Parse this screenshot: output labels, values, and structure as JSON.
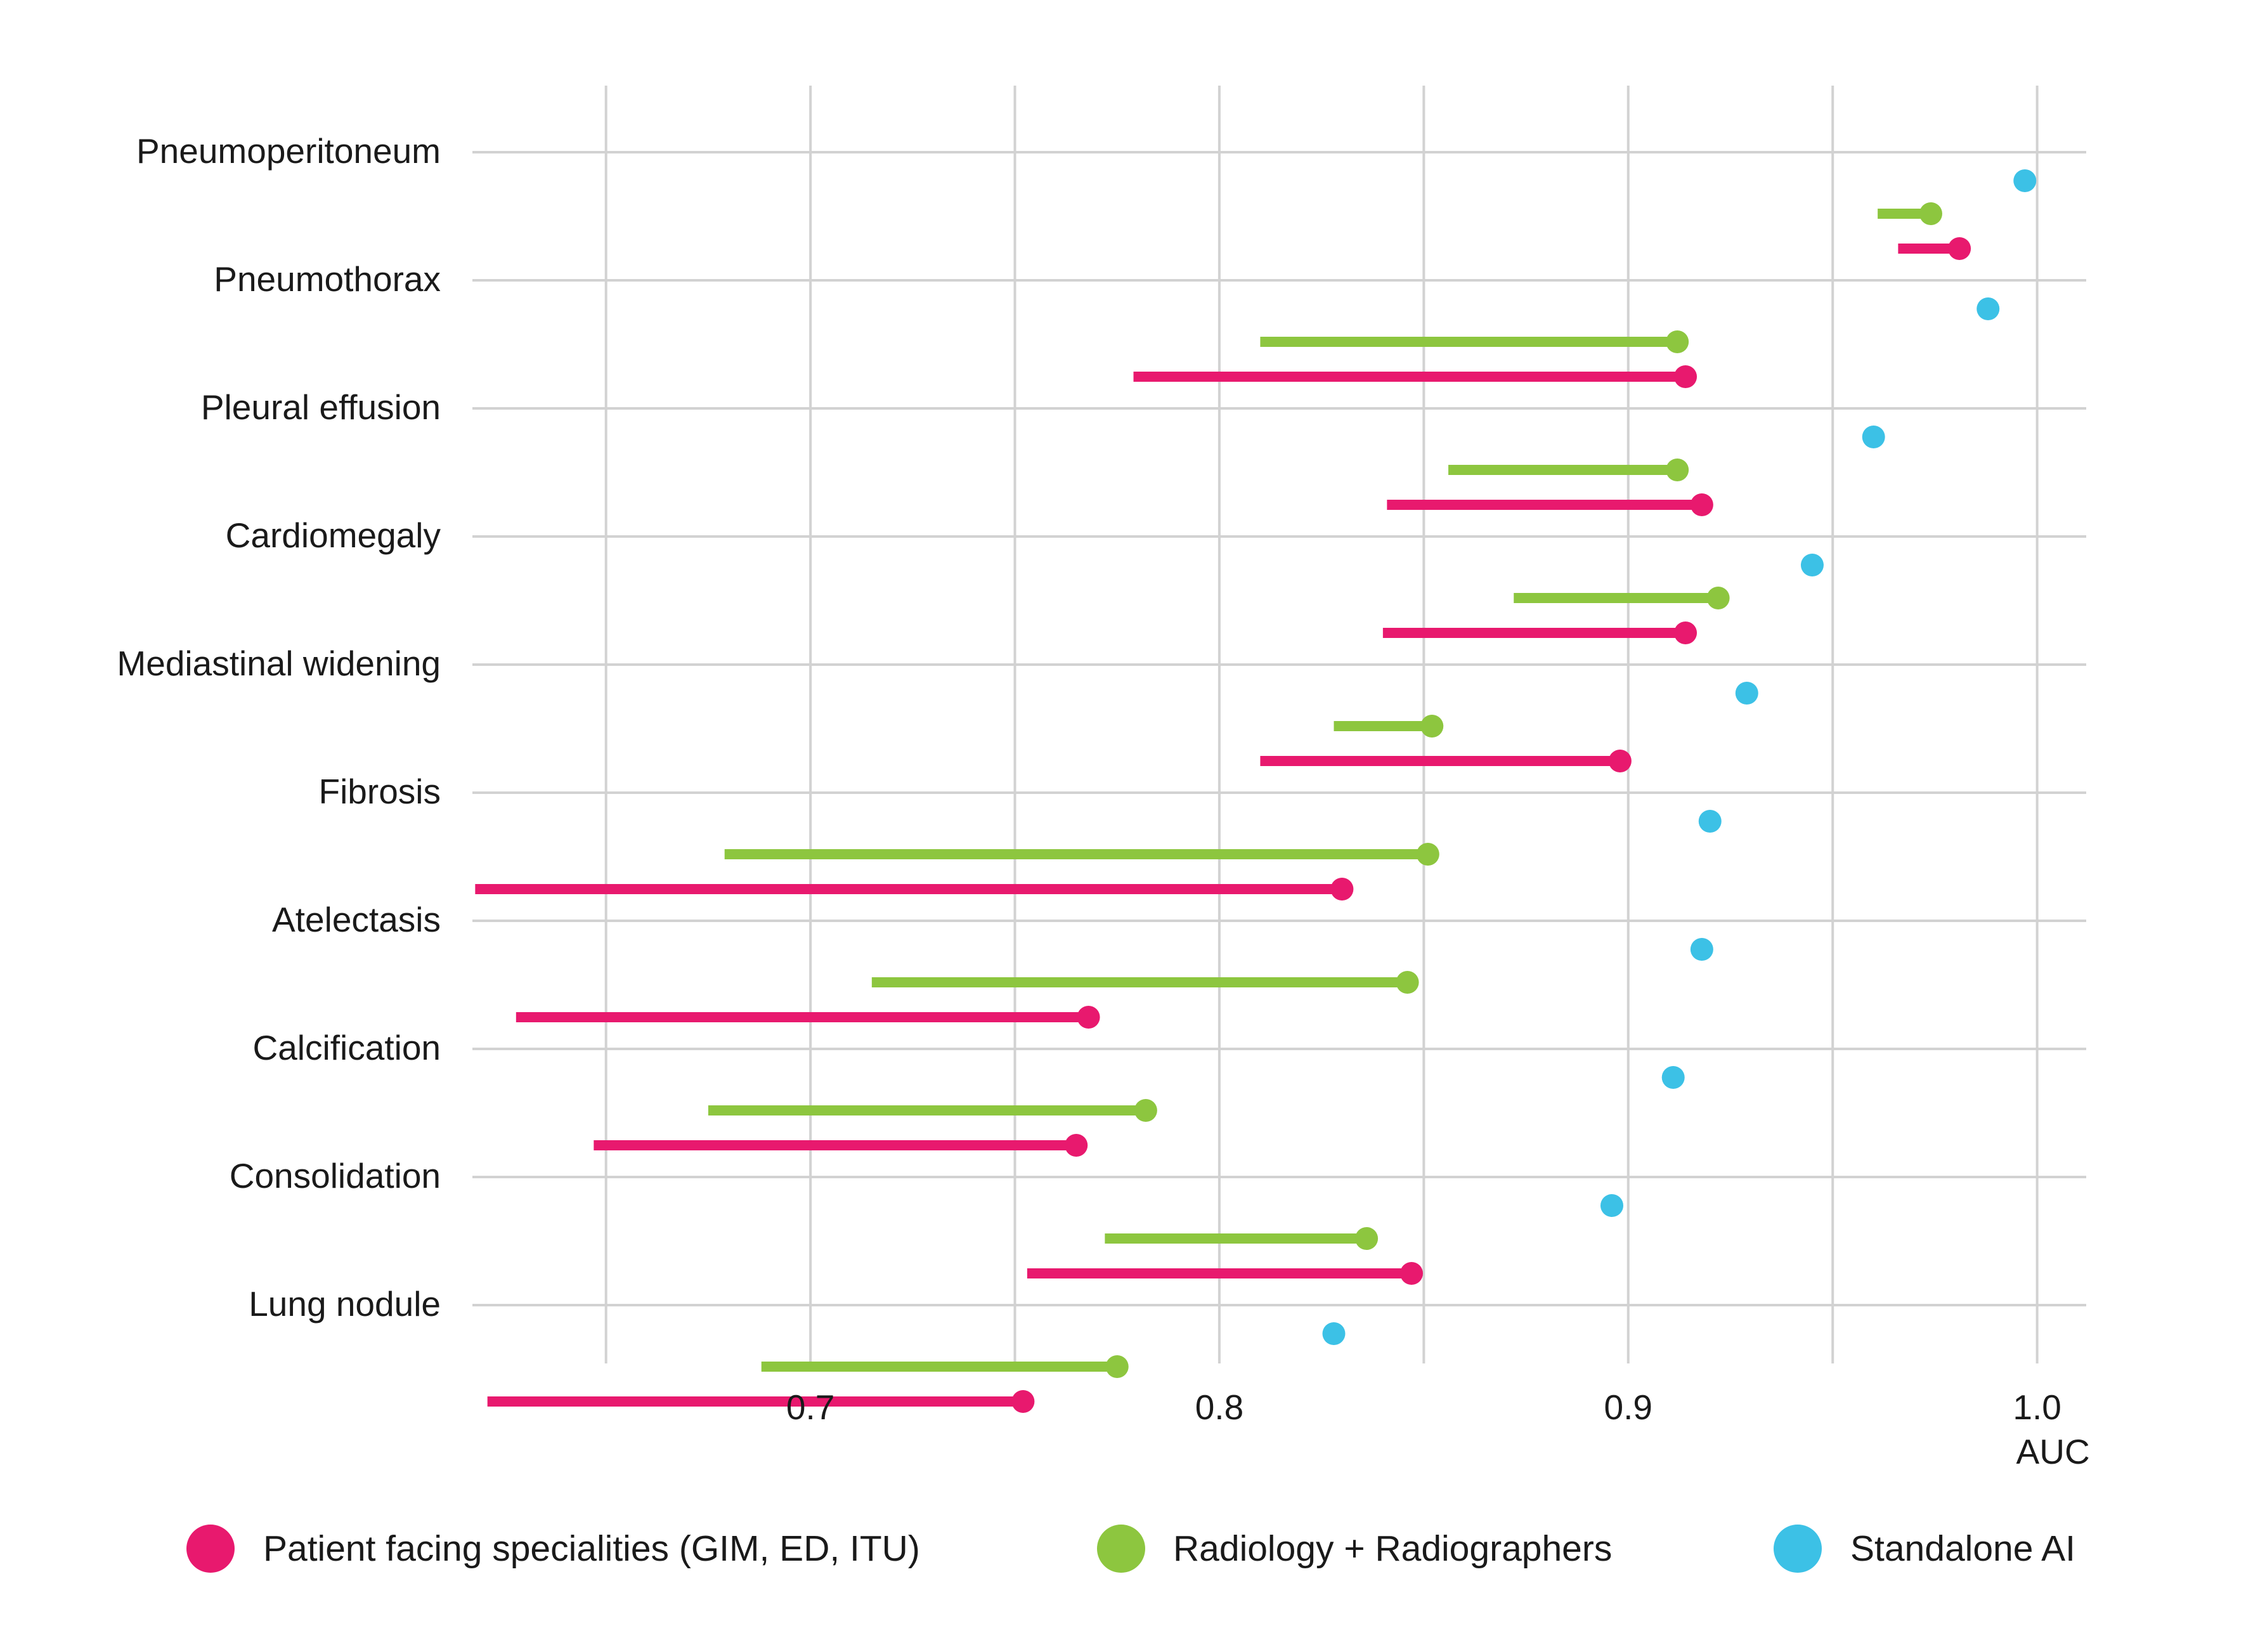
{
  "chart_data": {
    "type": "dumbbell",
    "categories": [
      "Pneumoperitoneum",
      "Pneumothorax",
      "Pleural effusion",
      "Cardiomegaly",
      "Mediastinal widening",
      "Fibrosis",
      "Atelectasis",
      "Calcification",
      "Consolidation",
      "Lung nodule"
    ],
    "xlabel": "AUC",
    "x_ticks": [
      "0.7",
      "0.8",
      "0.9",
      "1.0"
    ],
    "x_tick_values": [
      0.7,
      0.8,
      0.9,
      1.0
    ],
    "xlim": [
      0.615,
      1.012
    ],
    "grid": "on",
    "legend_position": "bottom",
    "series": [
      {
        "name": "Standalone AI",
        "color": "#3cc1e6",
        "values": [
          0.997,
          0.988,
          0.96,
          0.945,
          0.929,
          0.92,
          0.918,
          0.911,
          0.896,
          0.828
        ]
      },
      {
        "name": "Radiology + Radiographers",
        "color": "#8dc63f",
        "ranges": [
          [
            0.961,
            0.974
          ],
          [
            0.81,
            0.912
          ],
          [
            0.856,
            0.912
          ],
          [
            0.872,
            0.922
          ],
          [
            0.828,
            0.852
          ],
          [
            0.679,
            0.851
          ],
          [
            0.715,
            0.846
          ],
          [
            0.675,
            0.782
          ],
          [
            0.772,
            0.836
          ],
          [
            0.688,
            0.775
          ]
        ]
      },
      {
        "name": "Patient facing specialities (GIM, ED, ITU)",
        "color": "#e8196e",
        "ranges": [
          [
            0.966,
            0.981
          ],
          [
            0.779,
            0.914
          ],
          [
            0.841,
            0.918
          ],
          [
            0.84,
            0.914
          ],
          [
            0.81,
            0.898
          ],
          [
            0.618,
            0.83
          ],
          [
            0.628,
            0.768
          ],
          [
            0.647,
            0.765
          ],
          [
            0.753,
            0.847
          ],
          [
            0.621,
            0.752
          ]
        ]
      }
    ],
    "legend": [
      {
        "label": "Patient facing specialities (GIM, ED, ITU)",
        "color": "#e8196e"
      },
      {
        "label": "Radiology + Radiographers",
        "color": "#8dc63f"
      },
      {
        "label": "Standalone AI",
        "color": "#3cc1e6"
      }
    ]
  }
}
